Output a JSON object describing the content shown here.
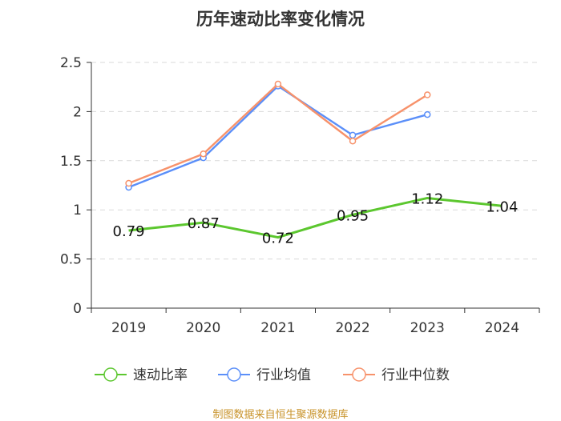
{
  "chart_data": {
    "type": "line",
    "title": "历年速动比率变化情况",
    "categories": [
      "2019",
      "2020",
      "2021",
      "2022",
      "2023",
      "2024"
    ],
    "ylim": [
      0,
      2.5
    ],
    "yticks": [
      "0",
      "0.5",
      "1",
      "1.5",
      "2",
      "2.5"
    ],
    "grid": true,
    "legend_position": "bottom",
    "series": [
      {
        "name": "速动比率",
        "color": "#5cc72f",
        "values": [
          0.79,
          0.87,
          0.72,
          0.95,
          1.12,
          1.04
        ],
        "labels": [
          "0.79",
          "0.87",
          "0.72",
          "0.95",
          "1.12",
          "1.04"
        ]
      },
      {
        "name": "行业均值",
        "color": "#5b8ff9",
        "values": [
          1.23,
          1.53,
          2.26,
          1.76,
          1.97,
          null
        ]
      },
      {
        "name": "行业中位数",
        "color": "#f7926b",
        "values": [
          1.27,
          1.57,
          2.28,
          1.7,
          2.17,
          null
        ]
      }
    ]
  },
  "footer": "制图数据来自恒生聚源数据库"
}
